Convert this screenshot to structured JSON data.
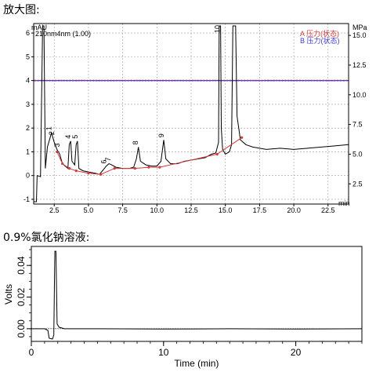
{
  "titles": {
    "top": "放大图:",
    "bottom": "0.9%氯化钠溶液:"
  },
  "chart_data": [
    {
      "type": "line",
      "y_left_unit": "mAU",
      "y_right_unit": "MPa",
      "x_unit": "min",
      "header_label": "210nm4nm (1.00)",
      "legend": [
        {
          "label": "A 压力(状态)",
          "color": "#d33a3a"
        },
        {
          "label": "B 压力(状态)",
          "color": "#3a3ad3"
        }
      ],
      "x_ticks": [
        2.5,
        5.0,
        7.5,
        10.0,
        12.5,
        15.0,
        17.5,
        20.0,
        22.5
      ],
      "y_left_ticks": [
        -1,
        0,
        1,
        2,
        3,
        4,
        5,
        6
      ],
      "y_right_ticks": [
        2.5,
        5.0,
        7.5,
        10.0,
        12.5,
        15.0
      ],
      "xlim": [
        1.0,
        24.0
      ],
      "ylim_left": [
        -1.2,
        6.4
      ],
      "ylim_right": [
        0.8,
        16.0
      ],
      "pressure_level": 11.2,
      "peak_labels": [
        {
          "text": "1",
          "x": 2.3
        },
        {
          "text": "2",
          "x": 2.5
        },
        {
          "text": "3",
          "x": 2.9
        },
        {
          "text": "4",
          "x": 3.7
        },
        {
          "text": "5",
          "x": 4.2
        },
        {
          "text": "6",
          "x": 6.3
        },
        {
          "text": "7",
          "x": 6.6
        },
        {
          "text": "8",
          "x": 8.6
        },
        {
          "text": "9",
          "x": 10.5
        },
        {
          "text": "10",
          "x": 14.6
        }
      ],
      "trace": [
        [
          1.0,
          -1.1
        ],
        [
          1.2,
          -1.1
        ],
        [
          1.25,
          0.0
        ],
        [
          1.5,
          -0.05
        ],
        [
          1.65,
          6.3
        ],
        [
          1.75,
          6.3
        ],
        [
          1.85,
          0.3
        ],
        [
          2.0,
          1.2
        ],
        [
          2.2,
          1.6
        ],
        [
          2.3,
          1.8
        ],
        [
          2.4,
          1.6
        ],
        [
          2.5,
          1.4
        ],
        [
          2.7,
          1.1
        ],
        [
          2.9,
          0.9
        ],
        [
          3.1,
          0.5
        ],
        [
          3.3,
          0.4
        ],
        [
          3.5,
          0.3
        ],
        [
          3.6,
          1.3
        ],
        [
          3.7,
          1.45
        ],
        [
          3.8,
          0.6
        ],
        [
          4.0,
          0.45
        ],
        [
          4.1,
          1.3
        ],
        [
          4.2,
          1.45
        ],
        [
          4.3,
          0.3
        ],
        [
          4.6,
          0.2
        ],
        [
          5.0,
          0.15
        ],
        [
          5.5,
          0.1
        ],
        [
          5.8,
          0.05
        ],
        [
          6.1,
          0.25
        ],
        [
          6.3,
          0.4
        ],
        [
          6.5,
          0.5
        ],
        [
          6.7,
          0.45
        ],
        [
          7.0,
          0.35
        ],
        [
          7.5,
          0.3
        ],
        [
          8.0,
          0.3
        ],
        [
          8.3,
          0.35
        ],
        [
          8.5,
          0.7
        ],
        [
          8.65,
          1.2
        ],
        [
          8.8,
          0.6
        ],
        [
          9.2,
          0.45
        ],
        [
          9.6,
          0.4
        ],
        [
          10.0,
          0.4
        ],
        [
          10.3,
          0.6
        ],
        [
          10.5,
          1.5
        ],
        [
          10.65,
          0.7
        ],
        [
          11.0,
          0.5
        ],
        [
          11.5,
          0.5
        ],
        [
          12.0,
          0.6
        ],
        [
          12.5,
          0.65
        ],
        [
          13.0,
          0.7
        ],
        [
          13.5,
          0.75
        ],
        [
          14.0,
          0.9
        ],
        [
          14.3,
          0.95
        ],
        [
          14.5,
          1.4
        ],
        [
          14.55,
          6.3
        ],
        [
          14.65,
          6.3
        ],
        [
          14.7,
          2.0
        ],
        [
          14.8,
          1.1
        ],
        [
          15.0,
          0.9
        ],
        [
          15.3,
          1.0
        ],
        [
          15.45,
          1.3
        ],
        [
          15.55,
          6.3
        ],
        [
          15.75,
          6.3
        ],
        [
          15.85,
          2.5
        ],
        [
          16.1,
          1.5
        ],
        [
          16.5,
          1.3
        ],
        [
          17.0,
          1.2
        ],
        [
          18.0,
          1.1
        ],
        [
          19.0,
          1.15
        ],
        [
          20.0,
          1.1
        ],
        [
          21.0,
          1.15
        ],
        [
          22.0,
          1.2
        ],
        [
          23.0,
          1.25
        ],
        [
          24.0,
          1.3
        ]
      ],
      "baseline": [
        [
          2.7,
          1.0
        ],
        [
          3.1,
          0.5
        ],
        [
          3.6,
          0.3
        ],
        [
          4.1,
          0.2
        ],
        [
          5.0,
          0.1
        ],
        [
          5.9,
          0.05
        ],
        [
          6.9,
          0.3
        ],
        [
          8.4,
          0.3
        ],
        [
          9.4,
          0.35
        ],
        [
          10.2,
          0.35
        ],
        [
          14.4,
          0.9
        ],
        [
          16.2,
          1.6
        ]
      ]
    },
    {
      "type": "line",
      "xlabel": "Time (min)",
      "ylabel": "Volts",
      "x_ticks": [
        0,
        10,
        20
      ],
      "y_ticks": [
        0.0,
        0.02,
        0.04
      ],
      "xlim": [
        0,
        25
      ],
      "ylim": [
        -0.008,
        0.052
      ],
      "trace": [
        [
          0.0,
          0.0
        ],
        [
          1.0,
          0.0
        ],
        [
          1.25,
          -0.001
        ],
        [
          1.35,
          -0.006
        ],
        [
          1.6,
          -0.0065
        ],
        [
          1.7,
          -0.004
        ],
        [
          1.78,
          0.049
        ],
        [
          1.86,
          0.049
        ],
        [
          1.95,
          0.003
        ],
        [
          2.1,
          0.001
        ],
        [
          2.5,
          0.0
        ],
        [
          5.0,
          0.0
        ],
        [
          10.0,
          -0.0002
        ],
        [
          15.0,
          0.0
        ],
        [
          20.0,
          -0.0002
        ],
        [
          25.0,
          0.0
        ]
      ]
    }
  ]
}
